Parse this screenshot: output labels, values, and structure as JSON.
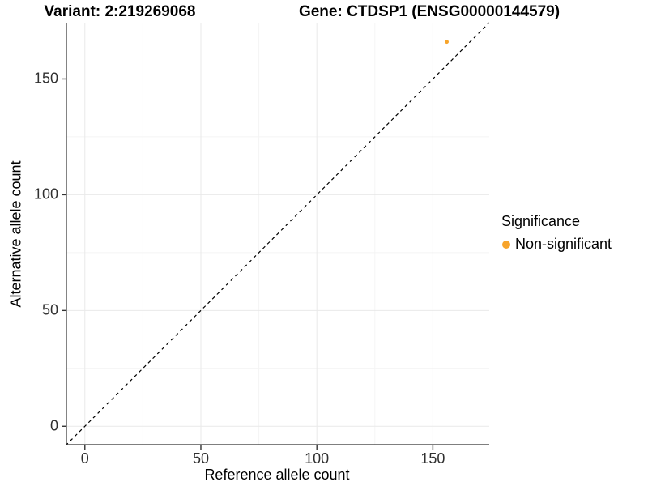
{
  "header": {
    "variant_title": "Variant: 2:219269068",
    "gene_title": "Gene: CTDSP1 (ENSG00000144579)"
  },
  "legend": {
    "title": "Significance",
    "items": [
      {
        "label": "Non-significant",
        "color": "#F7A42B",
        "shape": "dot"
      }
    ]
  },
  "chart_data": {
    "type": "scatter",
    "title": "Variant: 2:219269068 | Gene: CTDSP1 (ENSG00000144579)",
    "xlabel": "Reference allele count",
    "ylabel": "Alternative allele count",
    "xlim": [
      -8.3,
      174.3
    ],
    "ylim": [
      -8.3,
      174.3
    ],
    "x_ticks": [
      0,
      50,
      100,
      150
    ],
    "y_ticks": [
      0,
      50,
      100,
      150
    ],
    "minor_ticks": [
      25,
      75,
      125
    ],
    "grid": {
      "on": true,
      "major_color": "#E9E9E9",
      "minor_color": "#F4F4F4"
    },
    "series": [
      {
        "name": "Non-significant",
        "color": "#F7A42B",
        "marker": "circle",
        "point_radius": 2.4,
        "points": [
          {
            "x": 156,
            "y": 166
          }
        ]
      }
    ],
    "reference_line": {
      "kind": "identity y=x",
      "style": "dashed",
      "color": "#000000"
    },
    "axis_color": "#333333",
    "tick_color": "#333333",
    "legend_position": "right",
    "background": "#FFFFFF"
  }
}
